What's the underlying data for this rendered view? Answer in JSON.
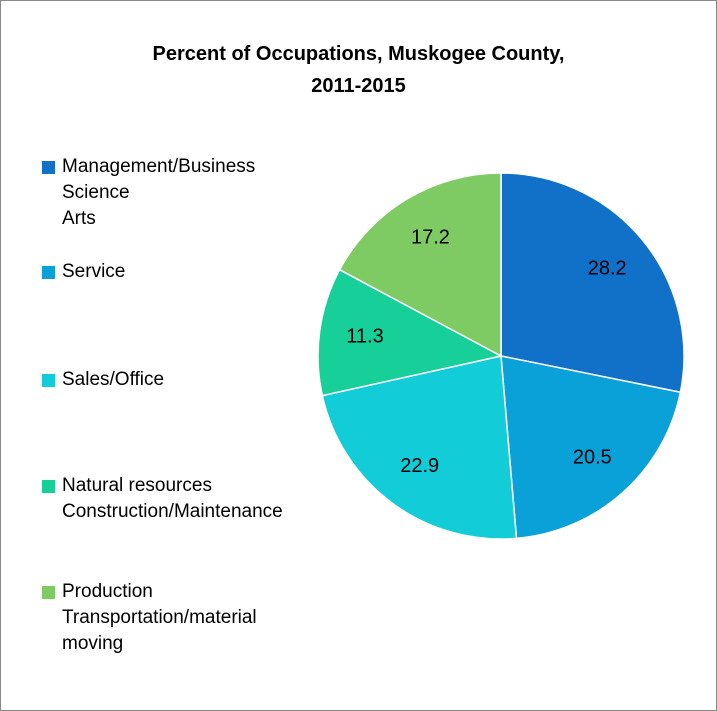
{
  "chart_data": {
    "type": "pie",
    "title": "Percent of Occupations, Muskogee County,\n2011-2015",
    "categories": [
      "Management/Business\nScience\nArts",
      "Service",
      "Sales/Office",
      "Natural resources\nConstruction/Maintenance",
      "Production\nTransportation/material\nmoving"
    ],
    "values": [
      28.2,
      20.5,
      22.9,
      11.3,
      17.2
    ],
    "colors": [
      "#1170c8",
      "#0aa0d8",
      "#12cdd8",
      "#17cf98",
      "#7dcb62"
    ],
    "legend": "left"
  }
}
